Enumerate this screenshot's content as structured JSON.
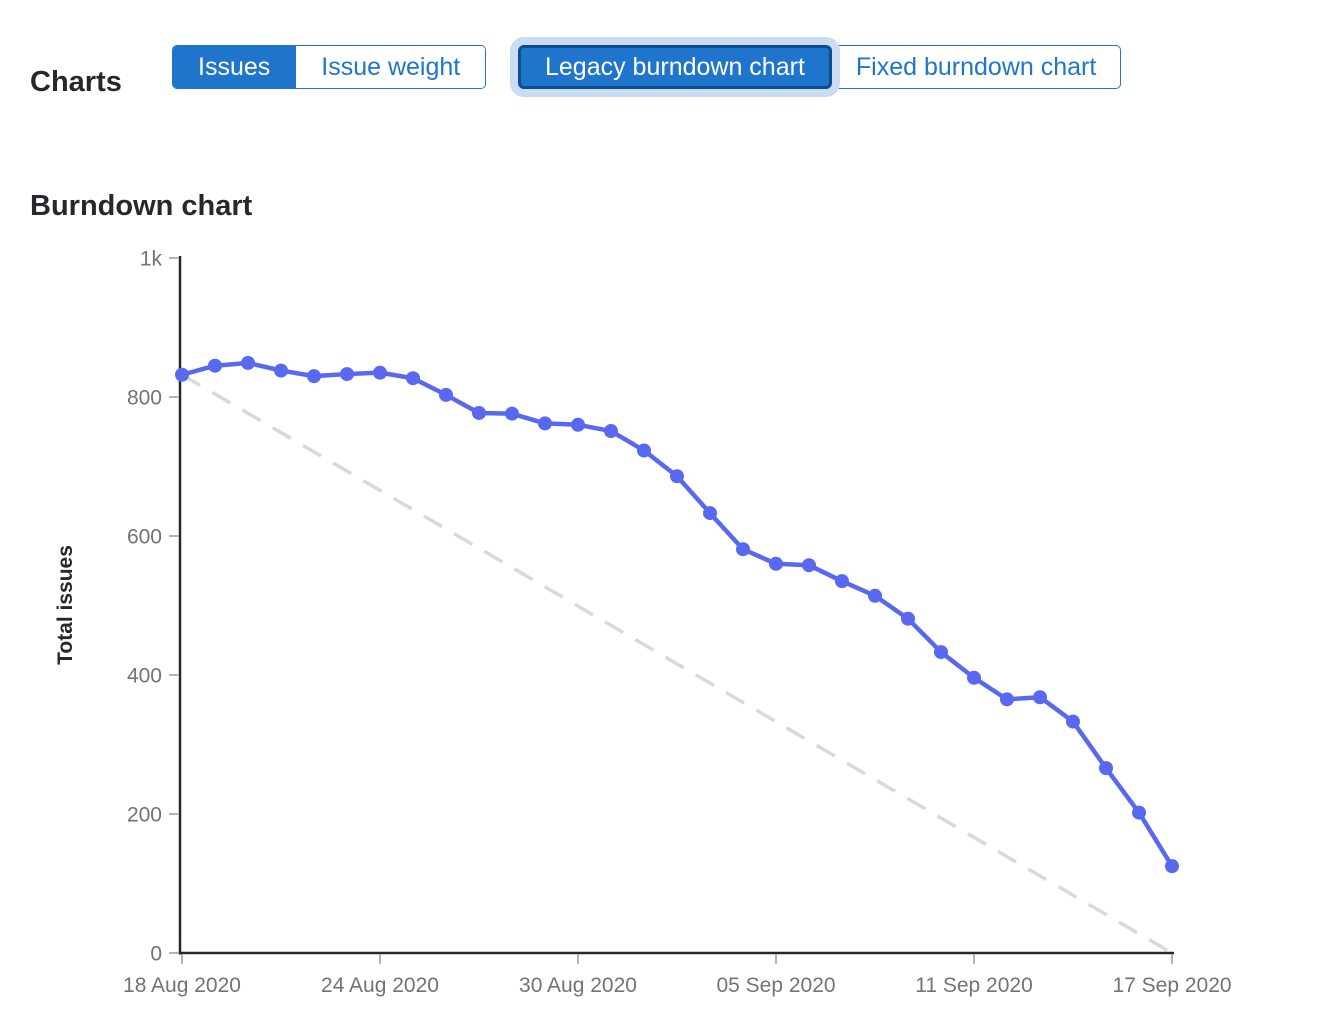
{
  "header": {
    "title": "Charts",
    "chart_type_toggle": {
      "options": [
        {
          "label": "Issues",
          "selected": true
        },
        {
          "label": "Issue weight",
          "selected": false
        }
      ]
    },
    "burndown_type_toggle": {
      "options": [
        {
          "label": "Legacy burndown chart",
          "selected": true,
          "focused": true
        },
        {
          "label": "Fixed burndown chart",
          "selected": false
        }
      ]
    }
  },
  "section": {
    "title": "Burndown chart"
  },
  "colors": {
    "accent_blue": "#1f75cb",
    "focus_border": "#0e4d8d",
    "focus_halo": "#cadcf3",
    "series_blue": "#5968f0",
    "guideline_gray": "#d9d9d9",
    "axis_dark": "#28272d",
    "tick_line_gray": "#b4b3b8",
    "tick_label_gray": "#737278",
    "heading_dark": "#28272d"
  },
  "chart_data": {
    "type": "line",
    "title": "Burndown chart",
    "xlabel": "",
    "ylabel": "Total issues",
    "ylim": [
      0,
      1000
    ],
    "grid": false,
    "legend": false,
    "ytick_labels": [
      "0",
      "200",
      "400",
      "600",
      "800",
      "1k"
    ],
    "ytick_values": [
      0,
      200,
      400,
      600,
      800,
      1000
    ],
    "xtick_labels": [
      "18 Aug 2020",
      "24 Aug 2020",
      "30 Aug 2020",
      "05 Sep 2020",
      "11 Sep 2020",
      "17 Sep 2020"
    ],
    "x": [
      "18 Aug 2020",
      "19 Aug 2020",
      "20 Aug 2020",
      "21 Aug 2020",
      "22 Aug 2020",
      "23 Aug 2020",
      "24 Aug 2020",
      "25 Aug 2020",
      "26 Aug 2020",
      "27 Aug 2020",
      "28 Aug 2020",
      "29 Aug 2020",
      "30 Aug 2020",
      "31 Aug 2020",
      "01 Sep 2020",
      "02 Sep 2020",
      "03 Sep 2020",
      "04 Sep 2020",
      "05 Sep 2020",
      "06 Sep 2020",
      "07 Sep 2020",
      "08 Sep 2020",
      "09 Sep 2020",
      "10 Sep 2020",
      "11 Sep 2020",
      "12 Sep 2020",
      "13 Sep 2020",
      "14 Sep 2020",
      "15 Sep 2020",
      "16 Sep 2020",
      "17 Sep 2020"
    ],
    "series": [
      {
        "name": "total-issues-remaining",
        "values": [
          832,
          845,
          849,
          838,
          830,
          833,
          835,
          827,
          803,
          777,
          776,
          762,
          760,
          751,
          723,
          686,
          633,
          581,
          560,
          558,
          535,
          514,
          481,
          433,
          396,
          365,
          368,
          333,
          266,
          202,
          125
        ]
      }
    ],
    "guideline": {
      "style": "dashed",
      "start_value": 832,
      "end_value": 0
    }
  }
}
